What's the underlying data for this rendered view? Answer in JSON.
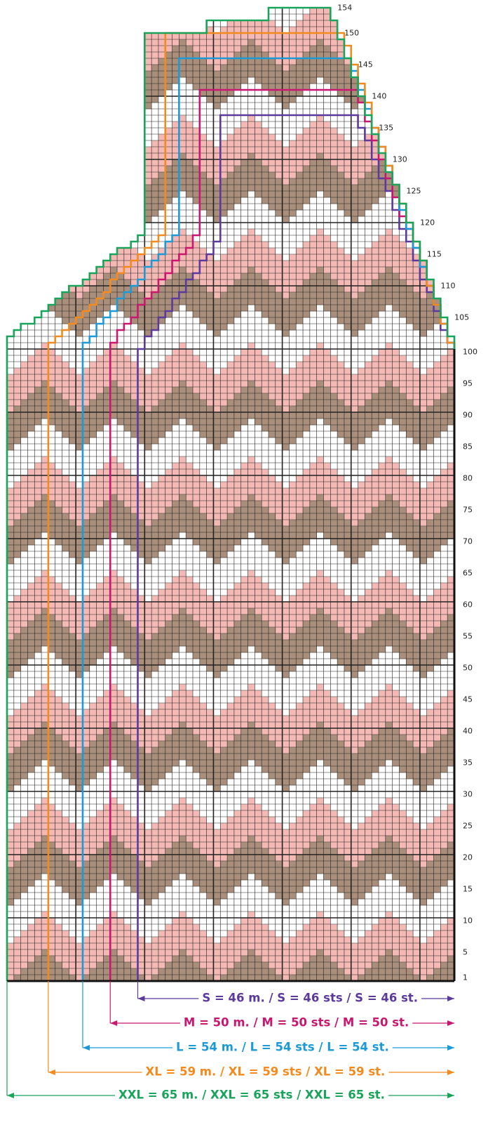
{
  "row_labels": [
    1,
    5,
    10,
    15,
    20,
    25,
    30,
    35,
    40,
    45,
    50,
    55,
    60,
    65,
    70,
    75,
    80,
    85,
    90,
    95,
    100
  ],
  "upper_row_labels": [
    105,
    110,
    115,
    120,
    125,
    130,
    135,
    140,
    145,
    150,
    154
  ],
  "sizes": [
    {
      "label": "S = 46 m. / S = 46 sts / S = 46 st."
    },
    {
      "label": "M = 50 m. / M = 50 sts / M = 50 st."
    },
    {
      "label": "L = 54 m. / L = 54 sts / L = 54 st."
    },
    {
      "label": "XL = 59 m. / XL = 59 sts / XL = 59 st."
    },
    {
      "label": "XXL = 65 m. / XXL = 65 sts / XXL = 65 st."
    }
  ]
}
